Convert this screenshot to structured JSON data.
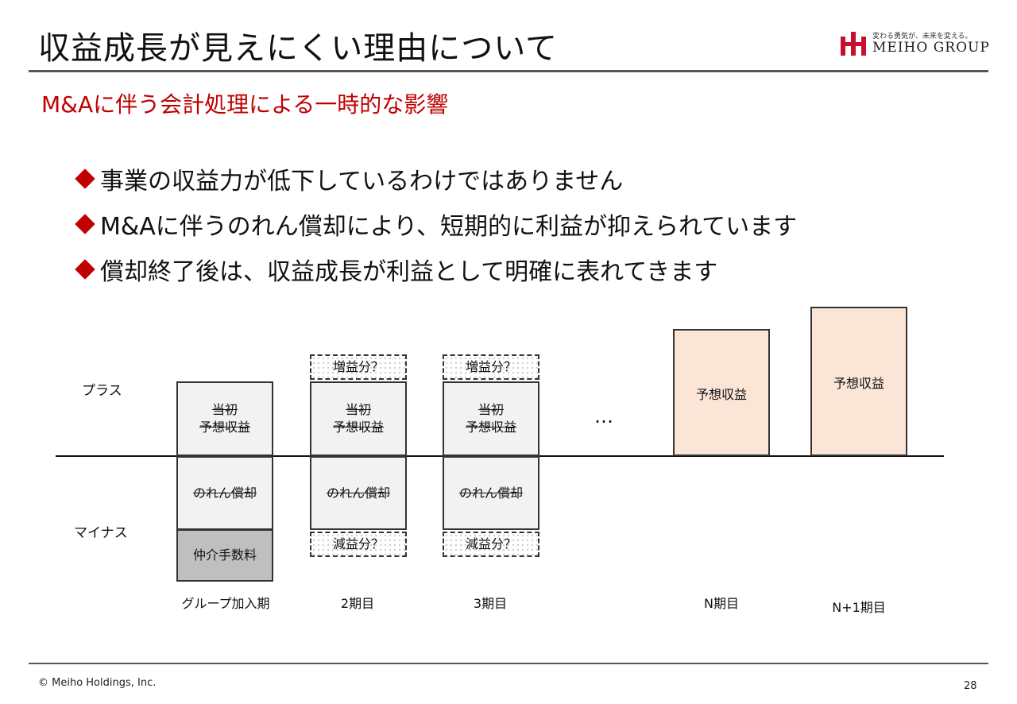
{
  "header": {
    "title": "収益成長が見えにくい理由について",
    "logo": {
      "tagline": "変わる勇気が、未来を変える。",
      "name": "MEIHO GROUP",
      "brand_color": "#c8102e"
    }
  },
  "subtitle": "M&Aに伴う会計処理による一時的な影響",
  "bullets": [
    "事業の収益力が低下しているわけではありません",
    "M&Aに伴うのれん償却により、短期的に利益が抑えられています",
    "償却終了後は、収益成長が利益として明確に表れてきます"
  ],
  "diagram": {
    "axis_plus": "プラス",
    "axis_minus": "マイナス",
    "ellipsis": "…",
    "columns": [
      {
        "period": "グループ加入期",
        "initial_line1": "当初",
        "initial_line2": "予想収益",
        "amortization": "のれん償却",
        "fee": "仲介手数料"
      },
      {
        "period": "2期目",
        "increase": "増益分？",
        "initial_line1": "当初",
        "initial_line2": "予想収益",
        "amortization": "のれん償却",
        "decrease": "減益分？"
      },
      {
        "period": "3期目",
        "increase": "増益分？",
        "initial_line1": "当初",
        "initial_line2": "予想収益",
        "amortization": "のれん償却",
        "decrease": "減益分？"
      },
      {
        "period": "N期目",
        "forecast": "予想収益"
      },
      {
        "period": "N+1期目",
        "forecast": "予想収益"
      }
    ],
    "colors": {
      "accent": "#c00000",
      "box_fill": "#f2f2f2",
      "fee_fill": "#bfbfbf",
      "forecast_fill": "#fbe5d6"
    }
  },
  "footer": {
    "copyright": "© Meiho Holdings, Inc.",
    "page": "28"
  }
}
